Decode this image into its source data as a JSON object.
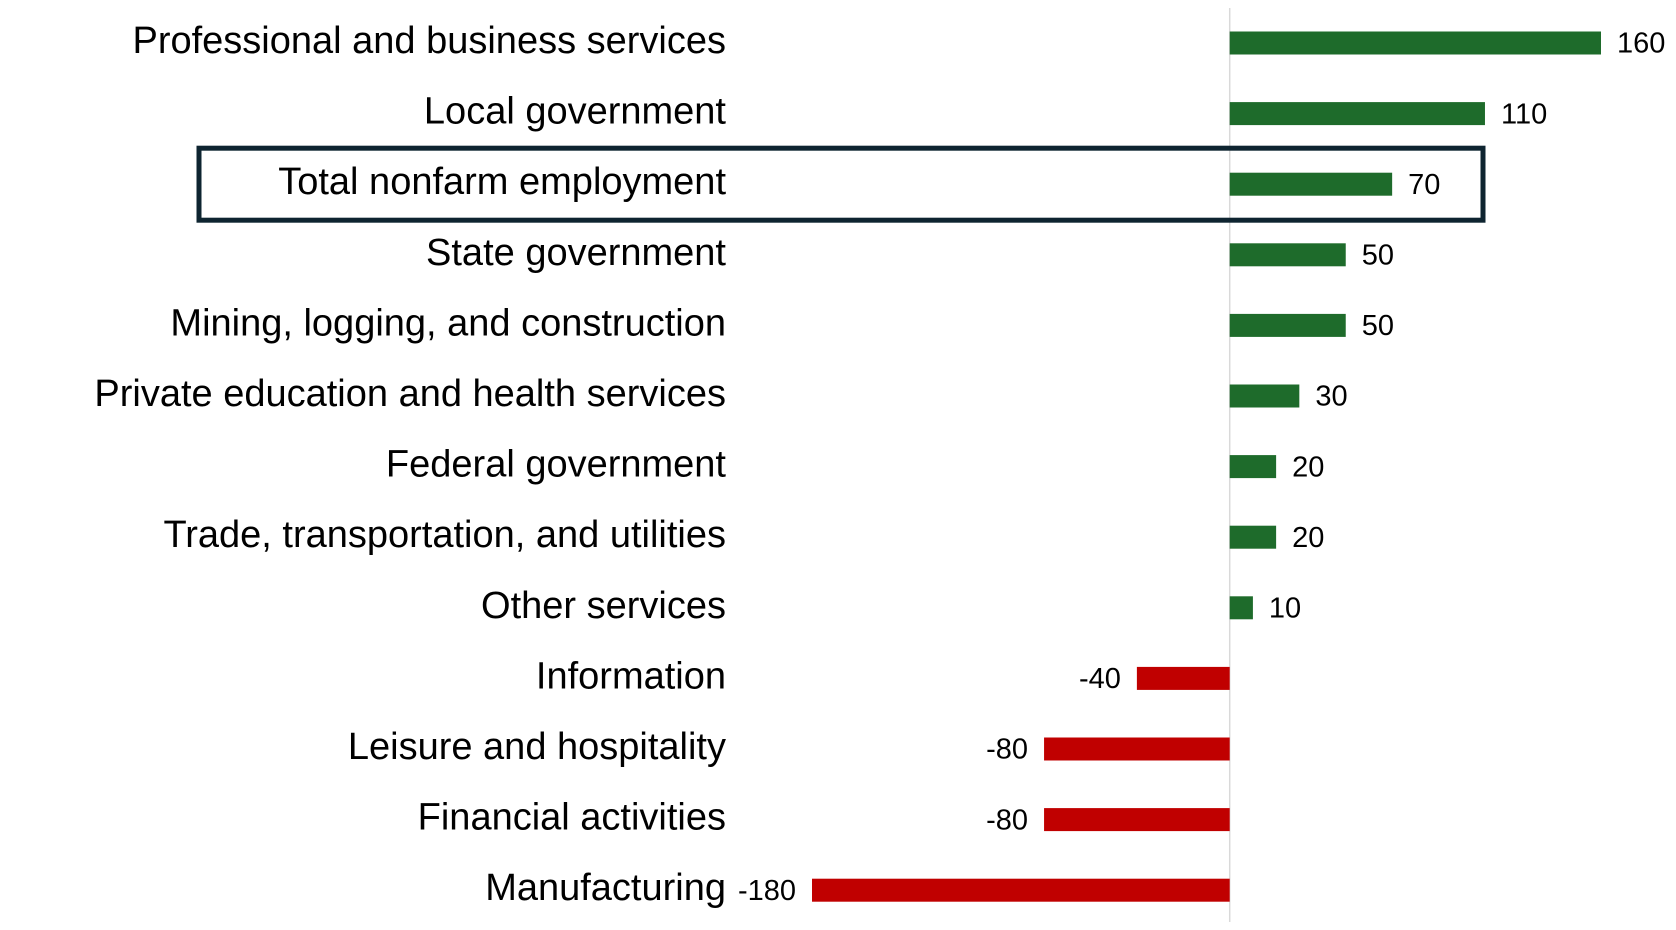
{
  "chart_data": {
    "type": "bar",
    "orientation": "horizontal",
    "categories": [
      "Professional and business services",
      "Local government",
      "Total nonfarm employment",
      "State government",
      "Mining, logging, and construction",
      "Private education and health services",
      "Federal government",
      "Trade, transportation, and utilities",
      "Other services",
      "Information",
      "Leisure and hospitality",
      "Financial activities",
      "Manufacturing"
    ],
    "values": [
      160,
      110,
      70,
      50,
      50,
      30,
      20,
      20,
      10,
      -40,
      -80,
      -80,
      -180
    ],
    "colors": [
      "#1e6b2b",
      "#1e6b2b",
      "#1e6b2b",
      "#1e6b2b",
      "#1e6b2b",
      "#1e6b2b",
      "#1e6b2b",
      "#1e6b2b",
      "#1e6b2b",
      "#c00000",
      "#c00000",
      "#c00000",
      "#c00000"
    ],
    "highlight": 2
  }
}
